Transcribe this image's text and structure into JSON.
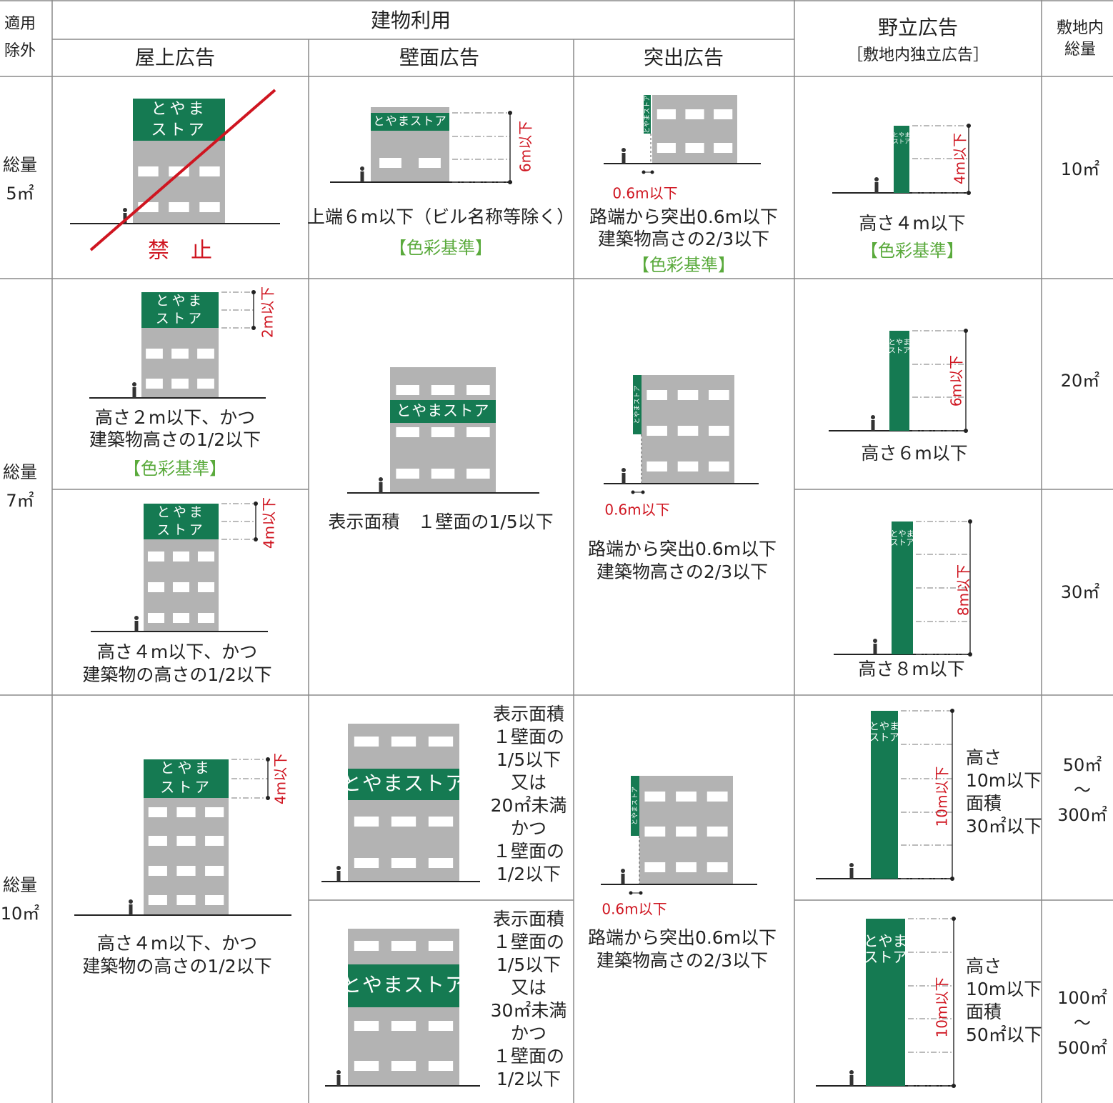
{
  "header": {
    "exempt": [
      "適用",
      "除外"
    ],
    "building_use": "建物利用",
    "rooftop": "屋上広告",
    "wall": "壁面広告",
    "projecting": "突出広告",
    "standalone": [
      "野立広告",
      "［敷地内独立広告］"
    ],
    "site_total": [
      "敷地内",
      "総量"
    ]
  },
  "rows": [
    {
      "label": [
        "総量",
        "5㎡"
      ],
      "rooftop": [
        {
          "sign": [
            "とやま",
            "ストア"
          ],
          "prohibited": "禁　止"
        }
      ],
      "wall": [
        {
          "sign": [
            "とやまストア"
          ],
          "dim": "6m以下",
          "lines": [
            "上端６m以下（ビル名称等除く）"
          ],
          "note": "【色彩基準】"
        }
      ],
      "projecting": {
        "sign": [
          "とやまストア"
        ],
        "dim": "0.6m以下",
        "lines": [
          "路端から突出0.6m以下",
          "建築物高さの2/3以下"
        ],
        "note": "【色彩基準】"
      },
      "standalone": [
        {
          "sign": [
            "とやま",
            "ストア"
          ],
          "dim": "4m以下",
          "lines": [
            "高さ４m以下"
          ],
          "note": "【色彩基準】"
        }
      ],
      "site_total": [
        [
          "10㎡"
        ]
      ]
    },
    {
      "label": [
        "総量",
        "7㎡"
      ],
      "rooftop": [
        {
          "sign": [
            "とやま",
            "ストア"
          ],
          "dim": "2m以下",
          "lines": [
            "高さ２m以下、かつ",
            "建築物高さの1/2以下"
          ],
          "note": "【色彩基準】"
        },
        {
          "sign": [
            "とやま",
            "ストア"
          ],
          "dim": "4m以下",
          "lines": [
            "高さ４m以下、かつ",
            "建築物の高さの1/2以下"
          ]
        }
      ],
      "wall": [
        {
          "sign": [
            "とやまストア"
          ],
          "lines": [
            "表示面積　１壁面の1/5以下"
          ]
        }
      ],
      "projecting": {
        "sign": [
          "とやまストア"
        ],
        "dim": "0.6m以下",
        "lines": [
          "路端から突出0.6m以下",
          "建築物高さの2/3以下"
        ]
      },
      "standalone": [
        {
          "sign": [
            "とやま",
            "ストア"
          ],
          "dim": "6m以下",
          "lines": [
            "高さ６m以下"
          ]
        },
        {
          "sign": [
            "とやま",
            "ストア"
          ],
          "dim": "8m以下",
          "lines": [
            "高さ８m以下"
          ]
        }
      ],
      "site_total": [
        [
          "20㎡"
        ],
        [
          "30㎡"
        ]
      ]
    },
    {
      "label": [
        "総量",
        "10㎡"
      ],
      "rooftop": [
        {
          "sign": [
            "とやま",
            "ストア"
          ],
          "dim": "4m以下",
          "lines": [
            "高さ４m以下、かつ",
            "建築物の高さの1/2以下"
          ]
        }
      ],
      "wall": [
        {
          "sign": [
            "とやまストア"
          ],
          "lines": [
            "表示面積",
            "１壁面の",
            "1/5以下",
            "又は",
            "20㎡未満",
            "かつ",
            "１壁面の",
            "1/2以下"
          ]
        },
        {
          "sign": [
            "とやまストア"
          ],
          "lines": [
            "表示面積",
            "１壁面の",
            "1/5以下",
            "又は",
            "30㎡未満",
            "かつ",
            "１壁面の",
            "1/2以下"
          ]
        }
      ],
      "projecting": {
        "sign": [
          "とやまストア"
        ],
        "dim": "0.6m以下",
        "lines": [
          "路端から突出0.6m以下",
          "建築物高さの2/3以下"
        ]
      },
      "standalone": [
        {
          "sign": [
            "とやま",
            "ストア"
          ],
          "dim": "10m以下",
          "lines": [
            "高さ",
            "10m以下",
            "面積",
            "30㎡以下"
          ]
        },
        {
          "sign": [
            "とやま",
            "ストア"
          ],
          "dim": "10m以下",
          "lines": [
            "高さ",
            "10m以下",
            "面積",
            "50㎡以下"
          ]
        }
      ],
      "site_total": [
        [
          "50㎡",
          "～",
          "300㎡"
        ],
        [
          "100㎡",
          "～",
          "500㎡"
        ]
      ]
    }
  ]
}
